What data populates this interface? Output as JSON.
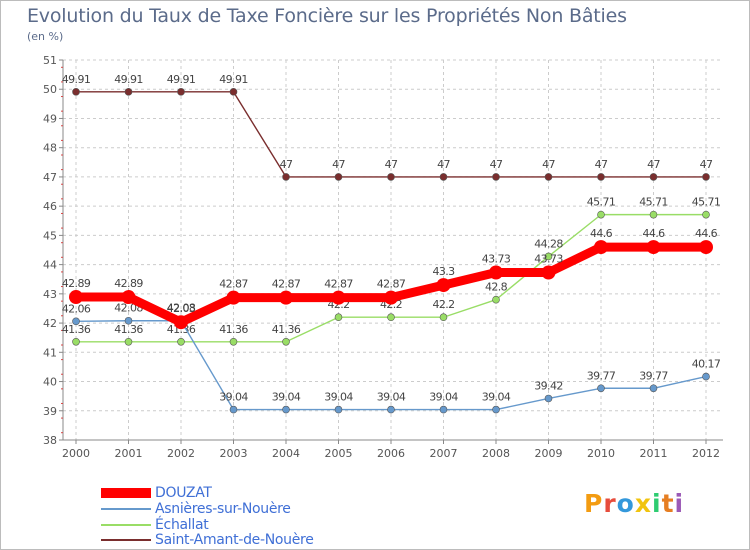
{
  "header": {
    "title": "Evolution du Taux de Taxe Foncière sur les Propriétés Non Bâties",
    "unit": "(en %)"
  },
  "logo": {
    "text": "Proxiti",
    "letters": [
      "P",
      "r",
      "o",
      "x",
      "i",
      "t",
      "i"
    ],
    "colors": [
      "#f39c12",
      "#e74c3c",
      "#3498db",
      "#f1c40f",
      "#2ecc71",
      "#e67e22",
      "#9b59b6"
    ]
  },
  "chart_data": {
    "type": "line",
    "title": "Evolution du Taux de Taxe Foncière sur les Propriétés Non Bâties",
    "ylabel": "(en %)",
    "xlabel": "",
    "ylim": [
      38,
      51
    ],
    "yticks": [
      "38",
      "39",
      "40",
      "41",
      "42",
      "43",
      "44",
      "45",
      "46",
      "47",
      "48",
      "49",
      "50",
      "51"
    ],
    "categories": [
      "2000",
      "2001",
      "2002",
      "2003",
      "2004",
      "2005",
      "2006",
      "2007",
      "2008",
      "2009",
      "2010",
      "2011",
      "2012"
    ],
    "grid": true,
    "series": [
      {
        "name": "Saint-Amant-de-Nouère",
        "color": "#7a2e2e",
        "values": [
          49.91,
          49.91,
          49.91,
          49.91,
          47,
          47,
          47,
          47,
          47,
          47,
          47,
          47,
          47
        ],
        "labels": [
          "49.91",
          "49.91",
          "49.91",
          "49.91",
          "47",
          "47",
          "47",
          "47",
          "47",
          "47",
          "47",
          "47",
          "47"
        ]
      },
      {
        "name": "Échallat",
        "color": "#99dd66",
        "values": [
          41.36,
          41.36,
          41.36,
          41.36,
          41.36,
          42.2,
          42.2,
          42.2,
          42.8,
          44.28,
          45.71,
          45.71,
          45.71
        ],
        "labels": [
          "41.36",
          "41.36",
          "41.36",
          "41.36",
          "41.36",
          "42.2",
          "42.2",
          "42.2",
          "42.8",
          "44.28",
          "45.71",
          "45.71",
          "45.71"
        ]
      },
      {
        "name": "Asnières-sur-Nouère",
        "color": "#6699cc",
        "values": [
          42.06,
          42.08,
          42.08,
          39.04,
          39.04,
          39.04,
          39.04,
          39.04,
          39.04,
          39.42,
          39.77,
          39.77,
          40.17
        ],
        "labels": [
          "42.06",
          "42.08",
          "42.08",
          "39.04",
          "39.04",
          "39.04",
          "39.04",
          "39.04",
          "39.04",
          "39.42",
          "39.77",
          "39.77",
          "40.17"
        ]
      },
      {
        "name": "DOUZAT",
        "color": "#ff0000",
        "values": [
          42.89,
          42.89,
          42.03,
          42.87,
          42.87,
          42.87,
          42.87,
          43.3,
          43.73,
          43.73,
          44.6,
          44.6,
          44.6
        ],
        "labels": [
          "42.89",
          "42.89",
          "42.03",
          "42.87",
          "42.87",
          "42.87",
          "42.87",
          "43.3",
          "43.73",
          "43.73",
          "44.6",
          "44.6",
          "44.6"
        ]
      }
    ],
    "legend": [
      "DOUZAT",
      "Asnières-sur-Nouère",
      "Échallat",
      "Saint-Amant-de-Nouère"
    ]
  }
}
